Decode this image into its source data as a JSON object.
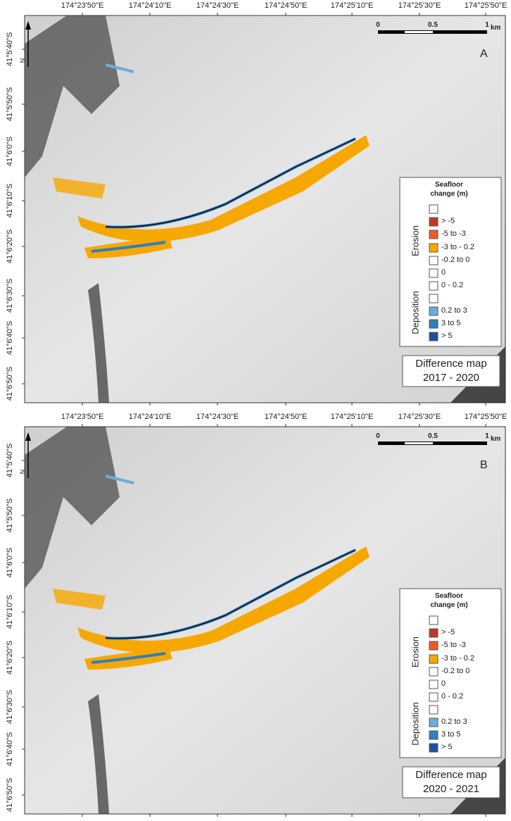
{
  "panels": [
    {
      "label": "A",
      "longitude_labels": [
        "174°23'50\"E",
        "174°24'10\"E",
        "174°24'30\"E",
        "174°24'50\"E",
        "174°25'10\"E",
        "174°25'30\"E",
        "174°25'50\"E"
      ],
      "latitude_labels": [
        "41°5'40\"S",
        "41°5'50\"S",
        "41°6'0\"S",
        "41°6'10\"S",
        "41°6'20\"S",
        "41°6'30\"S",
        "41°6'40\"S",
        "41°6'50\"S"
      ],
      "scale_labels": [
        "0",
        "0.5",
        "1"
      ],
      "scale_unit": "km",
      "north": "N",
      "legend": {
        "title": "Seafloor change (m)",
        "groups": [
          "Erosion",
          "Deposition"
        ],
        "items": [
          {
            "label": "> -5",
            "color": "#c0392b"
          },
          {
            "label": "-5 to -3",
            "color": "#f05a28"
          },
          {
            "label": "-3 to - 0.2",
            "color": "#f7a800"
          },
          {
            "label": "-0.2 to 0",
            "color": "#ffffff"
          },
          {
            "label": "0",
            "color": "#ffffff"
          },
          {
            "label": "0 - 0.2",
            "color": "#ffffff"
          },
          {
            "label": "0.2 to 3",
            "color": "#6baed6"
          },
          {
            "label": "3 to 5",
            "color": "#2f7fc1"
          },
          {
            "label": "> 5",
            "color": "#1f4e9c"
          }
        ]
      },
      "caption": [
        "Difference map",
        "2017 - 2020"
      ]
    },
    {
      "label": "B",
      "longitude_labels": [
        "174°23'50\"E",
        "174°24'10\"E",
        "174°24'30\"E",
        "174°24'50\"E",
        "174°25'10\"E",
        "174°25'30\"E",
        "174°25'50\"E"
      ],
      "latitude_labels": [
        "41°5'40\"S",
        "41°5'50\"S",
        "41°6'0\"S",
        "41°6'10\"S",
        "41°6'20\"S",
        "41°6'30\"S",
        "41°6'40\"S",
        "41°6'50\"S"
      ],
      "scale_labels": [
        "0",
        "0.5",
        "1"
      ],
      "scale_unit": "km",
      "north": "N",
      "legend": {
        "title": "Seafloor change (m)",
        "groups": [
          "Erosion",
          "Deposition"
        ],
        "items": [
          {
            "label": "> -5",
            "color": "#c0392b"
          },
          {
            "label": "-5 to -3",
            "color": "#f05a28"
          },
          {
            "label": "-3 to - 0.2",
            "color": "#f7a800"
          },
          {
            "label": "-0.2 to 0",
            "color": "#ffffff"
          },
          {
            "label": "0",
            "color": "#ffffff"
          },
          {
            "label": "0 - 0.2",
            "color": "#ffffff"
          },
          {
            "label": "0.2 to 3",
            "color": "#6baed6"
          },
          {
            "label": "3 to 5",
            "color": "#2f7fc1"
          },
          {
            "label": "> 5",
            "color": "#1f4e9c"
          }
        ]
      },
      "caption": [
        "Difference map",
        "2020 - 2021"
      ]
    }
  ]
}
